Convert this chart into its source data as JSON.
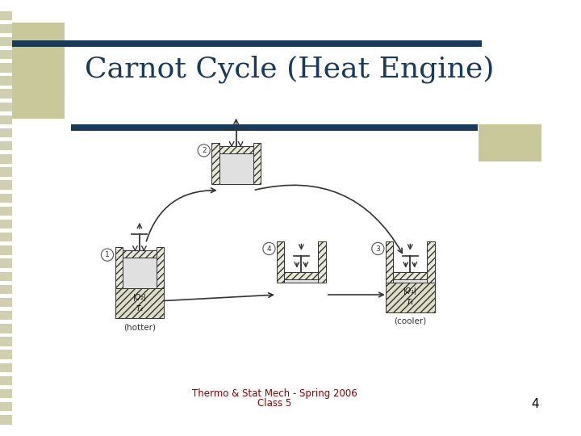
{
  "title": "Carnot Cycle (Heat Engine)",
  "footer_line1": "Thermo & Stat Mech - Spring 2006",
  "footer_line2": "Class 5",
  "page_number": "4",
  "bg_color": "#ffffff",
  "title_color": "#1a3a5c",
  "footer_color": "#8b0000",
  "page_num_color": "#000000",
  "accent_bar_color": "#1a3a5c",
  "accent_rect_color": "#c8c89a",
  "stripe_color": "#d0d0b0",
  "line_color": "#333333",
  "hatch_fc": "#e8e8d8",
  "gas_fc": "#e0e0e0"
}
